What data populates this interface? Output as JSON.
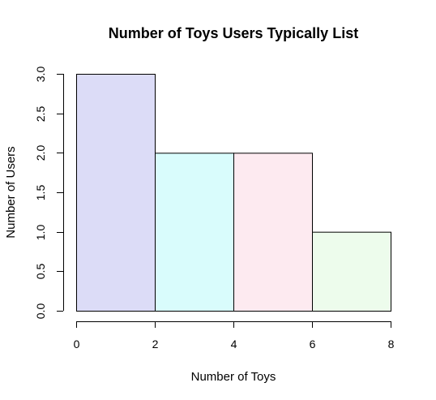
{
  "chart_data": {
    "type": "bar",
    "title": "Number of Toys Users Typically List",
    "xlabel": "Number of Toys",
    "ylabel": "Number of Users",
    "bins": [
      {
        "from": 0,
        "to": 2,
        "value": 3,
        "color": "#dcdcf7"
      },
      {
        "from": 2,
        "to": 4,
        "value": 2,
        "color": "#d9fcfc"
      },
      {
        "from": 4,
        "to": 6,
        "value": 2,
        "color": "#fdeaf0"
      },
      {
        "from": 6,
        "to": 8,
        "value": 1,
        "color": "#edfcec"
      }
    ],
    "xlim": [
      0,
      8
    ],
    "ylim": [
      0,
      3
    ],
    "x_ticks": [
      "0",
      "2",
      "4",
      "6",
      "8"
    ],
    "y_ticks": [
      "0.0",
      "0.5",
      "1.0",
      "1.5",
      "2.0",
      "2.5",
      "3.0"
    ],
    "grid": false
  }
}
